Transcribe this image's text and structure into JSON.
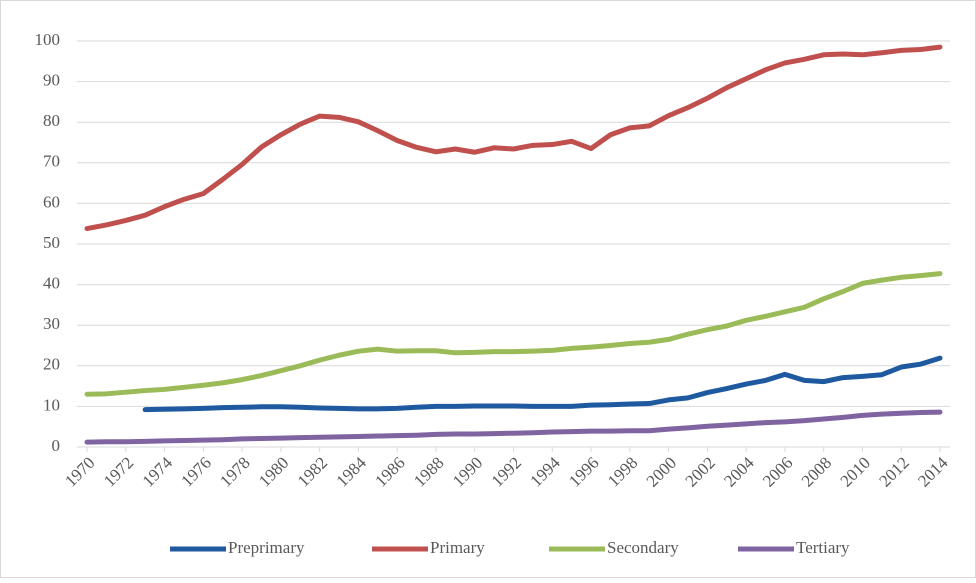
{
  "chart_data": {
    "type": "line",
    "x": [
      1970,
      1971,
      1972,
      1973,
      1974,
      1975,
      1976,
      1977,
      1978,
      1979,
      1980,
      1981,
      1982,
      1983,
      1984,
      1985,
      1986,
      1987,
      1988,
      1989,
      1990,
      1991,
      1992,
      1993,
      1994,
      1995,
      1996,
      1997,
      1998,
      1999,
      2000,
      2001,
      2002,
      2003,
      2004,
      2005,
      2006,
      2007,
      2008,
      2009,
      2010,
      2011,
      2012,
      2013,
      2014
    ],
    "xlim": [
      1970,
      2014
    ],
    "xticks": [
      1970,
      1972,
      1974,
      1976,
      1978,
      1980,
      1982,
      1984,
      1986,
      1988,
      1990,
      1992,
      1994,
      1996,
      1998,
      2000,
      2002,
      2004,
      2006,
      2008,
      2010,
      2012,
      2014
    ],
    "ylim": [
      0,
      100
    ],
    "yticks": [
      0,
      10,
      20,
      30,
      40,
      50,
      60,
      70,
      80,
      90,
      100
    ],
    "grid": true,
    "legend": "bottom",
    "series": [
      {
        "name": "Preprimary",
        "color": "#1f5aa0",
        "values": [
          null,
          null,
          null,
          9.2,
          9.3,
          9.4,
          9.5,
          9.7,
          9.8,
          9.9,
          9.9,
          9.8,
          9.6,
          9.5,
          9.4,
          9.4,
          9.5,
          9.8,
          10,
          10,
          10.1,
          10.1,
          10.1,
          10,
          10,
          10,
          10.3,
          10.4,
          10.6,
          10.7,
          11.6,
          12.1,
          13.4,
          14.4,
          15.5,
          16.4,
          17.9,
          16.4,
          16.1,
          17.1,
          17.4,
          17.8,
          19.7,
          20.4,
          21.9
        ]
      },
      {
        "name": "Primary",
        "color": "#c0504d",
        "values": [
          53.8,
          54.7,
          55.8,
          57.1,
          59.2,
          61,
          62.4,
          65.9,
          69.6,
          73.9,
          76.9,
          79.5,
          81.5,
          81.2,
          80.1,
          77.9,
          75.5,
          73.8,
          72.7,
          73.4,
          72.6,
          73.7,
          73.4,
          74.3,
          74.5,
          75.3,
          73.5,
          76.9,
          78.6,
          79.1,
          81.6,
          83.6,
          85.9,
          88.5,
          90.7,
          92.9,
          94.6,
          95.5,
          96.6,
          96.8,
          96.6,
          97.1,
          97.7,
          97.9,
          98.5
        ]
      },
      {
        "name": "Secondary",
        "color": "#9bbb59",
        "values": [
          13,
          13.1,
          13.5,
          13.9,
          14.2,
          14.7,
          15.2,
          15.8,
          16.6,
          17.6,
          18.8,
          20,
          21.4,
          22.6,
          23.6,
          24.1,
          23.6,
          23.7,
          23.7,
          23.2,
          23.3,
          23.5,
          23.5,
          23.6,
          23.8,
          24.3,
          24.6,
          25,
          25.5,
          25.8,
          26.5,
          27.8,
          28.9,
          29.8,
          31.2,
          32.2,
          33.3,
          34.4,
          36.5,
          38.3,
          40.3,
          41.1,
          41.8,
          42.2,
          42.7
        ]
      },
      {
        "name": "Tertiary",
        "color": "#8064a2",
        "values": [
          1.2,
          1.3,
          1.3,
          1.4,
          1.5,
          1.6,
          1.7,
          1.8,
          2,
          2.1,
          2.2,
          2.3,
          2.4,
          2.5,
          2.6,
          2.7,
          2.8,
          2.9,
          3.1,
          3.2,
          3.2,
          3.3,
          3.4,
          3.5,
          3.7,
          3.8,
          3.9,
          3.9,
          4,
          4,
          4.4,
          4.7,
          5.1,
          5.4,
          5.7,
          6,
          6.2,
          6.5,
          6.9,
          7.3,
          7.8,
          8.1,
          8.3,
          8.5,
          8.6
        ]
      }
    ]
  }
}
